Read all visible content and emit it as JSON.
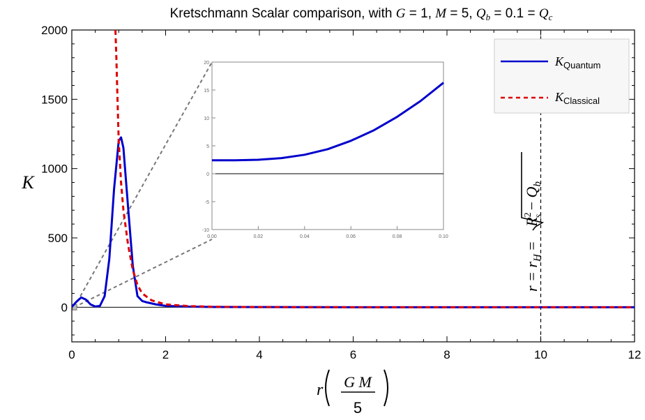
{
  "title": {
    "prefix": "Kretschmann Scalar comparison, with ",
    "parts": [
      "G",
      " = 1, ",
      "M",
      " = 5, ",
      "Q",
      "b",
      " = 0.1 = ",
      "Q",
      "c"
    ]
  },
  "ylabel": "K",
  "xlabel": {
    "r": "r",
    "numerator": "G M",
    "denominator": "5"
  },
  "horizon_label": {
    "lhs": "r = r",
    "sub_H": "H",
    "eq": " = ",
    "radicand_R": "R",
    "sup_2": "2",
    "sub_s": "s",
    "minus": " − ",
    "Q": "Q",
    "sub_b": "b"
  },
  "legend": {
    "position": "top-right",
    "entries": [
      {
        "symbol": "K",
        "subscript": "Quantum",
        "color": "#0000cc",
        "style": "solid"
      },
      {
        "symbol": "K",
        "subscript": "Classical",
        "color": "#dd0000",
        "style": "dashed"
      }
    ]
  },
  "chart_data": [
    {
      "type": "line",
      "title": "Kretschmann Scalar comparison, with G = 1, M = 5, Qb = 0.1 = Qc",
      "xlabel": "r (G M / 5)",
      "ylabel": "K",
      "xlim": [
        0,
        12
      ],
      "ylim": [
        -250,
        2000
      ],
      "xticks": [
        0,
        2,
        4,
        6,
        8,
        10,
        12
      ],
      "yticks": [
        0,
        500,
        1000,
        1500,
        2000
      ],
      "grid": false,
      "vertical_line": {
        "x": 10,
        "label": "r = rH = sqrt(Rs^2 - Qb)",
        "style": "dashed"
      },
      "series": [
        {
          "name": "K_Quantum",
          "color": "#0000cc",
          "style": "solid",
          "x": [
            0.0,
            0.1,
            0.2,
            0.3,
            0.4,
            0.5,
            0.6,
            0.7,
            0.8,
            0.9,
            1.0,
            1.05,
            1.1,
            1.2,
            1.3,
            1.4,
            1.5,
            1.6,
            1.8,
            2.0,
            2.5,
            3.0,
            4.0,
            6.0,
            8.0,
            10.0,
            12.0
          ],
          "y": [
            2,
            40,
            70,
            55,
            20,
            5,
            10,
            80,
            350,
            850,
            1200,
            1225,
            1150,
            720,
            300,
            80,
            45,
            35,
            20,
            10,
            4,
            2,
            1,
            0,
            0,
            0,
            0
          ]
        },
        {
          "name": "K_Classical",
          "color": "#dd0000",
          "style": "dashed",
          "x": [
            0.93,
            0.95,
            0.97,
            1.0,
            1.05,
            1.1,
            1.2,
            1.3,
            1.4,
            1.5,
            1.7,
            2.0,
            2.5,
            3.0,
            4.0,
            6.0,
            8.0,
            10.0,
            12.0
          ],
          "y": [
            2000,
            1800,
            1550,
            1200,
            900,
            700,
            450,
            270,
            160,
            100,
            50,
            20,
            8,
            3,
            1,
            0,
            0,
            0,
            0
          ]
        }
      ]
    },
    {
      "type": "line",
      "title": "",
      "xlim": [
        0,
        0.1
      ],
      "ylim": [
        -10,
        20
      ],
      "xticks": [
        0.0,
        0.02,
        0.04,
        0.06,
        0.08,
        0.1
      ],
      "xtick_labels": [
        "0.00",
        "0.02",
        "0.04",
        "0.06",
        "0.08",
        "0.10"
      ],
      "yticks": [
        -10,
        -5,
        0,
        5,
        10,
        15,
        20
      ],
      "grid": false,
      "series": [
        {
          "name": "K_Quantum",
          "color": "#0000cc",
          "style": "solid",
          "x": [
            0.0,
            0.01,
            0.02,
            0.03,
            0.04,
            0.05,
            0.06,
            0.07,
            0.08,
            0.09,
            0.1
          ],
          "y": [
            2.4,
            2.4,
            2.5,
            2.8,
            3.4,
            4.4,
            5.9,
            7.8,
            10.2,
            13.0,
            16.3
          ]
        }
      ]
    }
  ]
}
